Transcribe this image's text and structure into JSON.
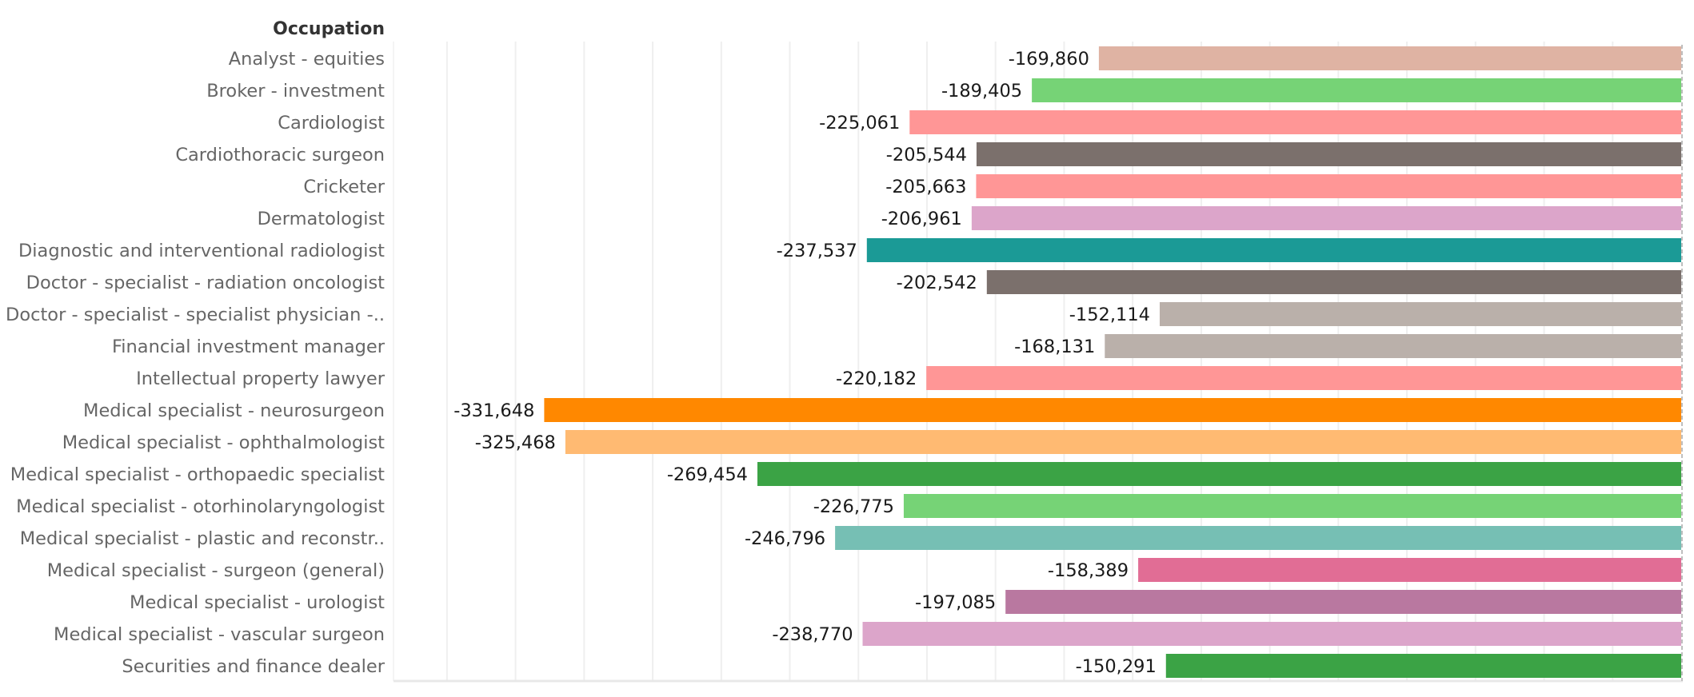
{
  "chart_data": {
    "type": "bar",
    "orientation": "horizontal",
    "row_header": "Occupation",
    "title": "",
    "xlabel": "",
    "ylabel": "Occupation",
    "xlim": [
      -375600,
      0
    ],
    "x_gridline_step": 20000,
    "grid": true,
    "legend": "none",
    "zero_line": "dashed",
    "categories": [
      "Analyst - equities",
      "Broker - investment",
      "Cardiologist",
      "Cardiothoracic surgeon",
      "Cricketer",
      "Dermatologist",
      "Diagnostic and interventional radiologist",
      "Doctor - specialist - radiation oncologist",
      "Doctor - specialist - specialist physician -..",
      "Financial investment manager",
      "Intellectual property lawyer",
      "Medical specialist - neurosurgeon",
      "Medical specialist - ophthalmologist",
      "Medical specialist - orthopaedic specialist",
      "Medical specialist - otorhinolaryngologist",
      "Medical specialist - plastic and reconstr..",
      "Medical specialist - surgeon (general)",
      "Medical specialist - urologist",
      "Medical specialist - vascular surgeon",
      "Securities and finance dealer"
    ],
    "values": [
      -169860,
      -189405,
      -225061,
      -205544,
      -205663,
      -206961,
      -237537,
      -202542,
      -152114,
      -168131,
      -220182,
      -331648,
      -325468,
      -269454,
      -226775,
      -246796,
      -158389,
      -197085,
      -238770,
      -150291
    ],
    "value_labels": [
      "-169,860",
      "-189,405",
      "-225,061",
      "-205,544",
      "-205,663",
      "-206,961",
      "-237,537",
      "-202,542",
      "-152,114",
      "-168,131",
      "-220,182",
      "-331,648",
      "-325,468",
      "-269,454",
      "-226,775",
      "-246,796",
      "-158,389",
      "-197,085",
      "-238,770",
      "-150,291"
    ],
    "colors": [
      "#DFB3A3",
      "#76D376",
      "#FF9696",
      "#7B706C",
      "#FF9696",
      "#DCA5CA",
      "#1B9A96",
      "#7B706C",
      "#BAB0AA",
      "#BAB0AA",
      "#FF9696",
      "#FF8800",
      "#FFBA72",
      "#3BA345",
      "#76D376",
      "#76BFB4",
      "#E16D95",
      "#B978A0",
      "#DCA5CA",
      "#3BA345"
    ]
  },
  "style": {
    "gridline_color": "#EFEFEF",
    "axis_line_color": "#E8E8E8",
    "zero_line_color": "#BFBFBF"
  }
}
